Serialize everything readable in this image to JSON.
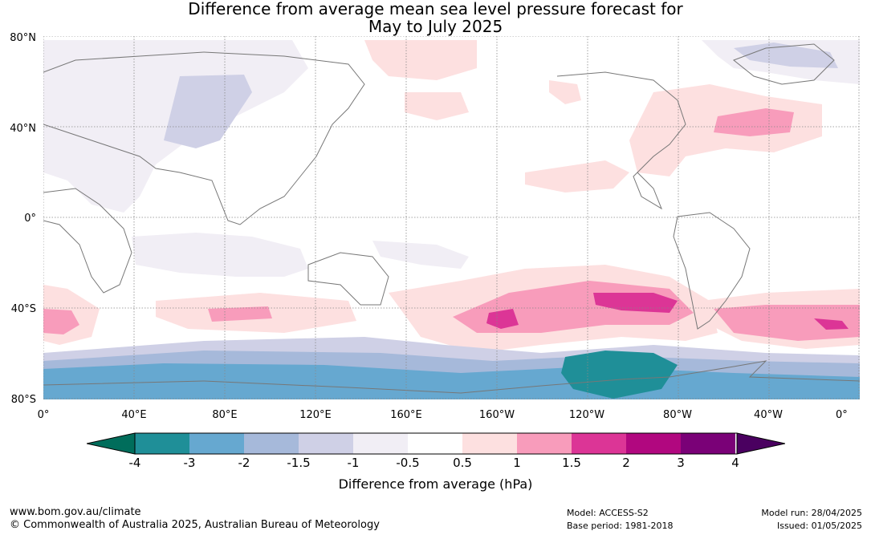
{
  "title_line1": "Difference from average mean sea level pressure forecast for",
  "title_line2": "May to July 2025",
  "lat_labels": [
    "80°N",
    "40°N",
    "0°",
    "40°S",
    "80°S"
  ],
  "lon_labels": [
    "0°",
    "40°E",
    "80°E",
    "120°E",
    "160°E",
    "160°W",
    "120°W",
    "80°W",
    "40°W",
    "0°"
  ],
  "colorbar": {
    "ticks": [
      "-4",
      "-3",
      "-2",
      "-1.5",
      "-1",
      "-0.5",
      "0.5",
      "1",
      "1.5",
      "2",
      "3",
      "4"
    ],
    "colors": [
      "#006d5b",
      "#1f8f98",
      "#66a8d0",
      "#a6b9da",
      "#cfd0e6",
      "#f1eef5",
      "#ffffff",
      "#fde0e0",
      "#f89cbb",
      "#dc3596",
      "#b1077f",
      "#7a0177",
      "#4a0060"
    ],
    "label": "Difference from average (hPa)"
  },
  "footer": {
    "url": "www.bom.gov.au/climate",
    "copyright": "© Commonwealth of Australia 2025, Australian Bureau of Meteorology",
    "model": "Model: ACCESS-S2",
    "base_period": "Base period: 1981-2018",
    "model_run": "Model run: 28/04/2025",
    "issued": "Issued: 01/05/2025"
  }
}
